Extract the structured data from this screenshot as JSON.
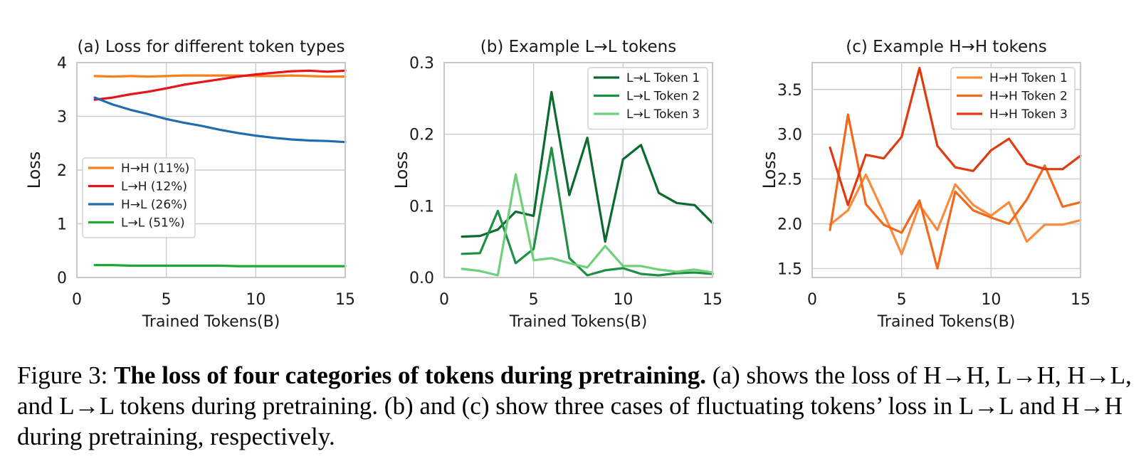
{
  "chart_data": [
    {
      "type": "line",
      "title": "(a) Loss for different token types",
      "xlabel": "Trained Tokens(B)",
      "ylabel": "Loss",
      "xlim": [
        0,
        15
      ],
      "ylim": [
        0,
        4
      ],
      "xticks": [
        0,
        5,
        10,
        15
      ],
      "yticks": [
        0,
        1,
        2,
        3,
        4
      ],
      "grid": true,
      "legend_position": "center-left",
      "x": [
        1,
        2,
        3,
        4,
        5,
        6,
        7,
        8,
        9,
        10,
        11,
        12,
        13,
        14,
        15
      ],
      "series": [
        {
          "name": "H→H (11%)",
          "color": "#f77f1e",
          "values": [
            3.75,
            3.74,
            3.75,
            3.74,
            3.75,
            3.76,
            3.76,
            3.76,
            3.76,
            3.75,
            3.75,
            3.76,
            3.75,
            3.74,
            3.74
          ]
        },
        {
          "name": "L→H (12%)",
          "color": "#e8141c",
          "values": [
            3.31,
            3.35,
            3.41,
            3.46,
            3.52,
            3.59,
            3.64,
            3.69,
            3.74,
            3.78,
            3.81,
            3.84,
            3.85,
            3.83,
            3.85
          ]
        },
        {
          "name": "H→L (26%)",
          "color": "#1f6cb0",
          "values": [
            3.35,
            3.22,
            3.12,
            3.04,
            2.95,
            2.88,
            2.82,
            2.75,
            2.69,
            2.64,
            2.6,
            2.57,
            2.55,
            2.54,
            2.52
          ]
        },
        {
          "name": "L→L (51%)",
          "color": "#21a832",
          "values": [
            0.23,
            0.23,
            0.22,
            0.22,
            0.22,
            0.22,
            0.22,
            0.22,
            0.21,
            0.21,
            0.21,
            0.21,
            0.21,
            0.21,
            0.21
          ]
        }
      ]
    },
    {
      "type": "line",
      "title": "(b) Example L→L tokens",
      "xlabel": "Trained Tokens(B)",
      "ylabel": "Loss",
      "xlim": [
        0,
        15
      ],
      "ylim": [
        0,
        0.3
      ],
      "xticks": [
        0,
        5,
        10,
        15
      ],
      "yticks": [
        0,
        0.1,
        0.2,
        0.3
      ],
      "ytick_labels": [
        "0.0",
        "0.1",
        "0.2",
        "0.3"
      ],
      "grid": true,
      "legend_position": "top-right",
      "x": [
        1,
        2,
        3,
        4,
        5,
        6,
        7,
        8,
        9,
        10,
        11,
        12,
        13,
        14,
        15
      ],
      "series": [
        {
          "name": "L→L Token 1",
          "color": "#0a6b2e",
          "values": [
            0.057,
            0.058,
            0.067,
            0.092,
            0.086,
            0.259,
            0.115,
            0.195,
            0.05,
            0.165,
            0.185,
            0.118,
            0.104,
            0.101,
            0.076
          ]
        },
        {
          "name": "L→L Token 2",
          "color": "#1e8f45",
          "values": [
            0.033,
            0.034,
            0.093,
            0.02,
            0.04,
            0.181,
            0.027,
            0.003,
            0.01,
            0.013,
            0.005,
            0.003,
            0.006,
            0.007,
            0.005
          ]
        },
        {
          "name": "L→L Token 3",
          "color": "#6fcf7a",
          "values": [
            0.012,
            0.009,
            0.003,
            0.144,
            0.024,
            0.027,
            0.02,
            0.014,
            0.044,
            0.016,
            0.016,
            0.011,
            0.008,
            0.011,
            0.007
          ]
        }
      ]
    },
    {
      "type": "line",
      "title": "(c) Example H→H tokens",
      "xlabel": "Trained Tokens(B)",
      "ylabel": "Loss",
      "xlim": [
        0,
        15
      ],
      "ylim": [
        1.4,
        3.8
      ],
      "xticks": [
        0,
        5,
        10,
        15
      ],
      "yticks": [
        1.5,
        2.0,
        2.5,
        3.0,
        3.5
      ],
      "ytick_labels": [
        "1.5",
        "2.0",
        "2.5",
        "3.0",
        "3.5"
      ],
      "grid": true,
      "legend_position": "top-right",
      "x": [
        1,
        2,
        3,
        4,
        5,
        6,
        7,
        8,
        9,
        10,
        11,
        12,
        13,
        14,
        15
      ],
      "series": [
        {
          "name": "H→H Token 1",
          "color": "#fb8b3c",
          "values": [
            1.99,
            2.15,
            2.55,
            2.12,
            1.66,
            2.21,
            1.93,
            2.44,
            2.21,
            2.09,
            2.24,
            1.8,
            1.99,
            1.99,
            2.04
          ]
        },
        {
          "name": "H→H Token 2",
          "color": "#f2681c",
          "values": [
            1.93,
            3.22,
            2.22,
            1.99,
            1.9,
            2.26,
            1.5,
            2.36,
            2.15,
            2.07,
            2.0,
            2.27,
            2.65,
            2.19,
            2.24
          ]
        },
        {
          "name": "H→H Token 3",
          "color": "#df3b10",
          "values": [
            2.85,
            2.21,
            2.77,
            2.73,
            2.97,
            3.74,
            2.87,
            2.63,
            2.59,
            2.82,
            2.95,
            2.67,
            2.61,
            2.61,
            2.76
          ]
        }
      ]
    }
  ],
  "caption": {
    "label": "Figure 3: ",
    "bold": "The loss of four categories of tokens during pretraining.",
    "text": " (a) shows the loss of H→H, L→H, H→L, and L→L tokens during pretraining. (b) and (c) show three cases of fluctuating tokens’ loss in L→L and H→H during pretraining, respectively."
  }
}
